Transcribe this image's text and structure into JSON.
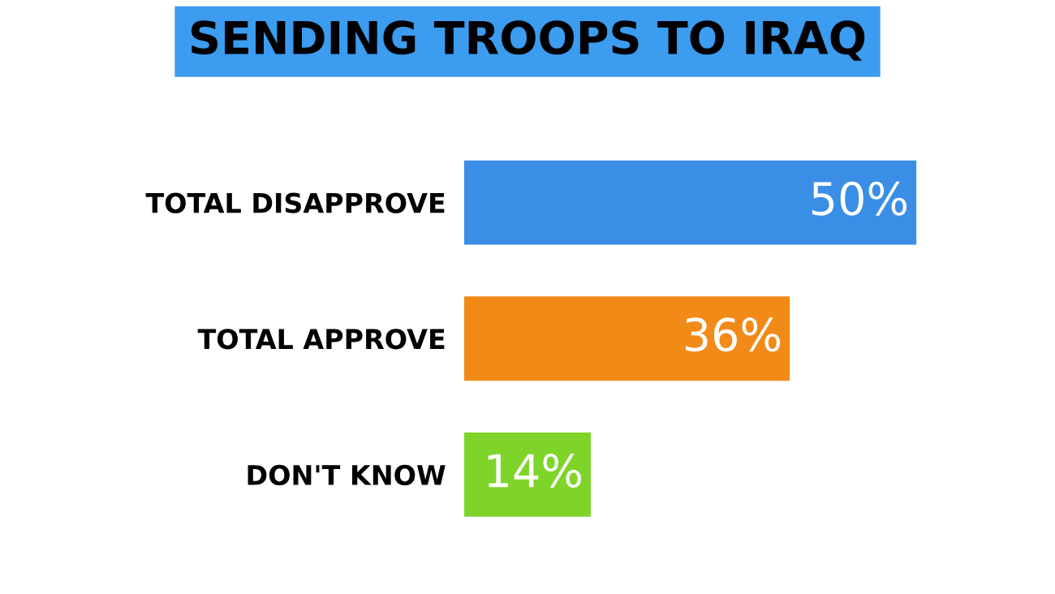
{
  "chart_data": {
    "type": "bar",
    "orientation": "horizontal",
    "title": "SENDING TROOPS TO IRAQ",
    "categories": [
      "TOTAL DISAPPROVE",
      "TOTAL APPROVE",
      "DON'T KNOW"
    ],
    "values": [
      50,
      36,
      14
    ],
    "value_labels": [
      "50%",
      "36%",
      "14%"
    ],
    "colors": [
      "#3a8ee6",
      "#f28a17",
      "#7fd42a"
    ],
    "grid": false,
    "legend": false
  }
}
